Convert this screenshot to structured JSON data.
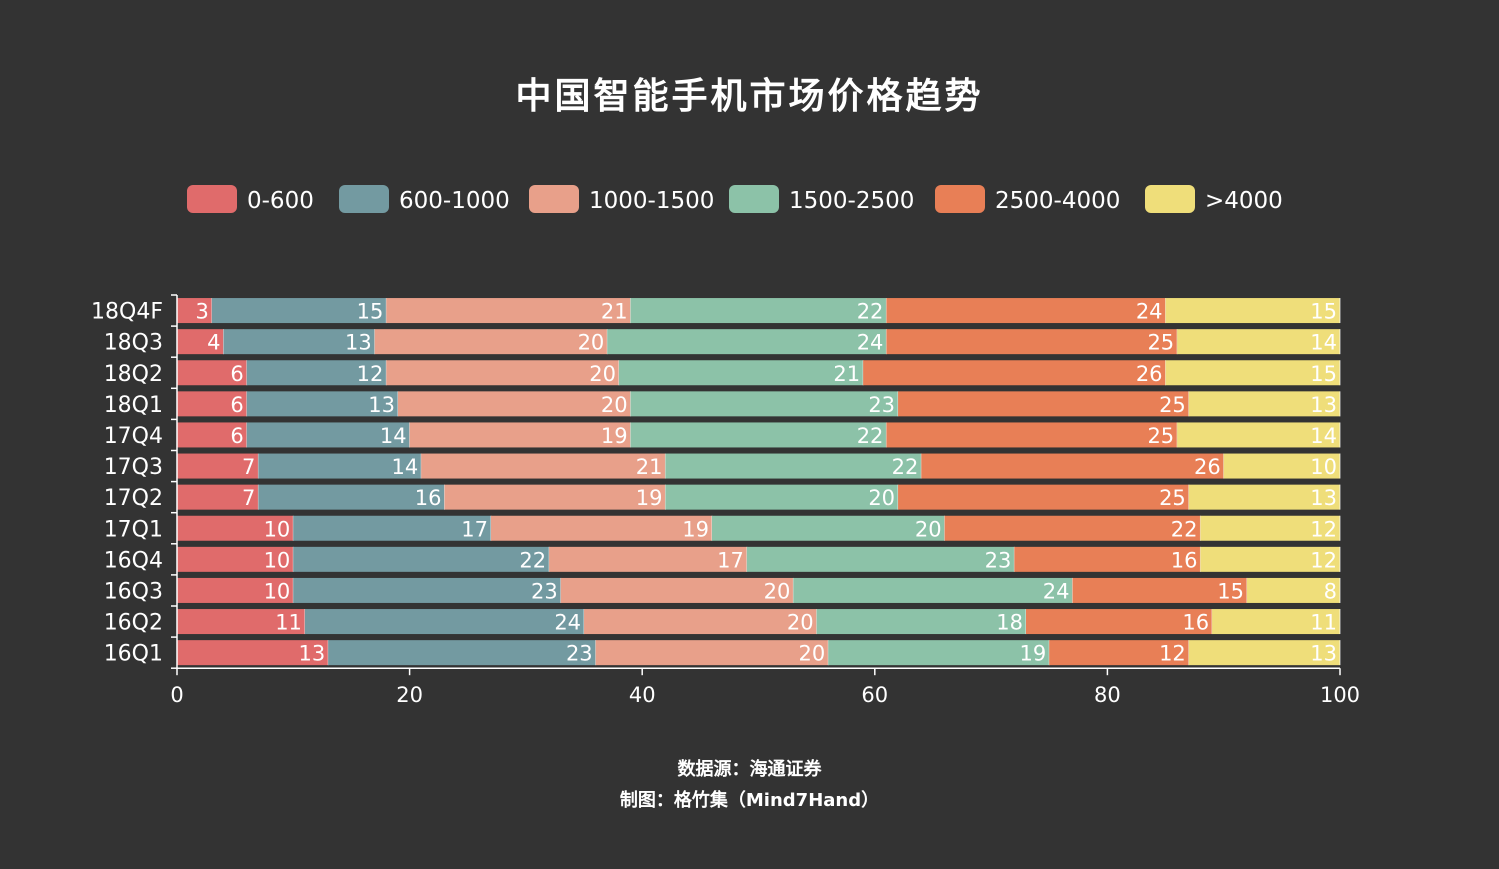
{
  "chart_data": {
    "type": "bar",
    "orientation": "horizontal",
    "stacked": true,
    "title": "中国智能手机市场价格趋势",
    "categories": [
      "18Q4F",
      "18Q3",
      "18Q2",
      "18Q1",
      "17Q4",
      "17Q3",
      "17Q2",
      "17Q1",
      "16Q4",
      "16Q3",
      "16Q2",
      "16Q1"
    ],
    "series": [
      {
        "name": "0-600",
        "color": "#e06b6b",
        "values": [
          3,
          4,
          6,
          6,
          6,
          7,
          7,
          10,
          10,
          10,
          11,
          13
        ]
      },
      {
        "name": "600-1000",
        "color": "#739aa1",
        "values": [
          15,
          13,
          12,
          13,
          14,
          14,
          16,
          17,
          22,
          23,
          24,
          23
        ]
      },
      {
        "name": "1000-1500",
        "color": "#e8a08a",
        "values": [
          21,
          20,
          20,
          20,
          19,
          21,
          19,
          19,
          17,
          20,
          20,
          20
        ]
      },
      {
        "name": "1500-2500",
        "color": "#8cc2a8",
        "values": [
          22,
          24,
          21,
          23,
          22,
          22,
          20,
          20,
          23,
          24,
          18,
          19
        ]
      },
      {
        "name": "2500-4000",
        "color": "#e87f56",
        "values": [
          24,
          25,
          26,
          25,
          25,
          26,
          25,
          22,
          16,
          15,
          16,
          12
        ]
      },
      {
        "name": ">4000",
        "color": "#efde7a",
        "values": [
          15,
          14,
          15,
          13,
          14,
          10,
          13,
          12,
          12,
          8,
          11,
          13
        ]
      }
    ],
    "xlim": [
      0,
      100
    ],
    "xticks": [
      "0",
      "20",
      "40",
      "60",
      "80",
      "100"
    ],
    "legend": "top",
    "grid": false
  },
  "footer": {
    "source": "数据源：海通证券",
    "credit": "制图：格竹集（Mind7Hand）"
  },
  "colors": {
    "background": "#333333",
    "text": "#ffffff"
  }
}
